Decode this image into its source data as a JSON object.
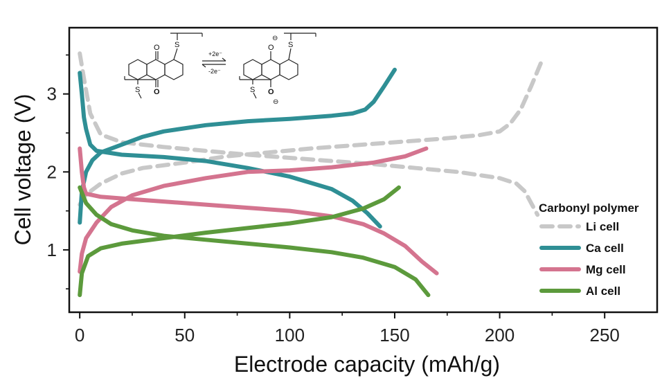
{
  "chart_data": {
    "type": "line",
    "xlabel": "Electrode capacity (mAh/g)",
    "ylabel": "Cell voltage (V)",
    "xlim": [
      -5,
      275
    ],
    "ylim": [
      0.2,
      3.85
    ],
    "xticks": [
      0,
      50,
      100,
      150,
      200,
      250
    ],
    "yticks": [
      1,
      2,
      3
    ],
    "xtick_labels": [
      "0",
      "50",
      "100",
      "150",
      "200",
      "250"
    ],
    "ytick_labels": [
      "1",
      "2",
      "3"
    ],
    "grid": false,
    "legend": {
      "title": "Carbonyl polymer",
      "placement": "bottom-right",
      "entries": [
        "Li cell",
        "Ca cell",
        "Mg cell",
        "Al cell"
      ]
    },
    "series": [
      {
        "name": "Li cell",
        "color": "#c8c8c8",
        "dashed": true,
        "segments": [
          [
            [
              0,
              3.52
            ],
            [
              2,
              3.2
            ],
            [
              5,
              2.75
            ],
            [
              10,
              2.48
            ],
            [
              20,
              2.38
            ],
            [
              40,
              2.32
            ],
            [
              60,
              2.27
            ],
            [
              80,
              2.22
            ],
            [
              100,
              2.18
            ],
            [
              120,
              2.14
            ],
            [
              140,
              2.1
            ],
            [
              160,
              2.05
            ],
            [
              180,
              2.0
            ],
            [
              200,
              1.92
            ],
            [
              208,
              1.85
            ],
            [
              212,
              1.75
            ],
            [
              215,
              1.6
            ],
            [
              218,
              1.45
            ]
          ],
          [
            [
              0,
              1.58
            ],
            [
              2,
              1.68
            ],
            [
              5,
              1.75
            ],
            [
              10,
              1.85
            ],
            [
              20,
              1.98
            ],
            [
              30,
              2.05
            ],
            [
              50,
              2.12
            ],
            [
              70,
              2.2
            ],
            [
              90,
              2.25
            ],
            [
              110,
              2.3
            ],
            [
              130,
              2.34
            ],
            [
              150,
              2.38
            ],
            [
              170,
              2.42
            ],
            [
              190,
              2.47
            ],
            [
              200,
              2.52
            ],
            [
              205,
              2.62
            ],
            [
              210,
              2.8
            ],
            [
              215,
              3.1
            ],
            [
              220,
              3.42
            ]
          ]
        ]
      },
      {
        "name": "Ca cell",
        "color": "#2f8f95",
        "dashed": false,
        "segments": [
          [
            [
              0,
              3.27
            ],
            [
              1,
              3.0
            ],
            [
              2,
              2.7
            ],
            [
              3,
              2.55
            ],
            [
              5,
              2.35
            ],
            [
              8,
              2.27
            ],
            [
              20,
              2.22
            ],
            [
              40,
              2.19
            ],
            [
              60,
              2.14
            ],
            [
              80,
              2.05
            ],
            [
              100,
              1.94
            ],
            [
              120,
              1.78
            ],
            [
              130,
              1.63
            ],
            [
              137,
              1.47
            ],
            [
              143,
              1.3
            ]
          ],
          [
            [
              0,
              1.35
            ],
            [
              1,
              1.75
            ],
            [
              3,
              2.0
            ],
            [
              6,
              2.15
            ],
            [
              10,
              2.25
            ],
            [
              20,
              2.35
            ],
            [
              30,
              2.45
            ],
            [
              40,
              2.52
            ],
            [
              60,
              2.6
            ],
            [
              80,
              2.65
            ],
            [
              100,
              2.68
            ],
            [
              120,
              2.72
            ],
            [
              130,
              2.75
            ],
            [
              136,
              2.8
            ],
            [
              140,
              2.9
            ],
            [
              145,
              3.1
            ],
            [
              150,
              3.31
            ]
          ]
        ]
      },
      {
        "name": "Mg cell",
        "color": "#d4748f",
        "dashed": false,
        "segments": [
          [
            [
              0,
              2.3
            ],
            [
              1,
              2.0
            ],
            [
              2,
              1.8
            ],
            [
              3,
              1.72
            ],
            [
              10,
              1.68
            ],
            [
              20,
              1.66
            ],
            [
              40,
              1.62
            ],
            [
              60,
              1.58
            ],
            [
              80,
              1.54
            ],
            [
              100,
              1.5
            ],
            [
              120,
              1.43
            ],
            [
              135,
              1.33
            ],
            [
              145,
              1.21
            ],
            [
              155,
              1.05
            ],
            [
              163,
              0.85
            ],
            [
              170,
              0.7
            ]
          ],
          [
            [
              0,
              0.72
            ],
            [
              1,
              0.95
            ],
            [
              3,
              1.15
            ],
            [
              8,
              1.35
            ],
            [
              15,
              1.55
            ],
            [
              25,
              1.7
            ],
            [
              40,
              1.82
            ],
            [
              60,
              1.92
            ],
            [
              80,
              2.0
            ],
            [
              100,
              2.02
            ],
            [
              120,
              2.06
            ],
            [
              140,
              2.12
            ],
            [
              155,
              2.2
            ],
            [
              165,
              2.3
            ]
          ]
        ]
      },
      {
        "name": "Al cell",
        "color": "#5c9a3c",
        "dashed": false,
        "segments": [
          [
            [
              0,
              1.8
            ],
            [
              3,
              1.6
            ],
            [
              8,
              1.45
            ],
            [
              15,
              1.33
            ],
            [
              25,
              1.25
            ],
            [
              40,
              1.18
            ],
            [
              60,
              1.13
            ],
            [
              80,
              1.08
            ],
            [
              100,
              1.03
            ],
            [
              120,
              0.97
            ],
            [
              135,
              0.9
            ],
            [
              150,
              0.78
            ],
            [
              160,
              0.62
            ],
            [
              166,
              0.42
            ]
          ],
          [
            [
              0,
              0.42
            ],
            [
              1,
              0.7
            ],
            [
              4,
              0.92
            ],
            [
              10,
              1.02
            ],
            [
              20,
              1.08
            ],
            [
              40,
              1.15
            ],
            [
              60,
              1.22
            ],
            [
              80,
              1.28
            ],
            [
              100,
              1.34
            ],
            [
              120,
              1.42
            ],
            [
              135,
              1.53
            ],
            [
              145,
              1.65
            ],
            [
              152,
              1.8
            ]
          ]
        ]
      }
    ],
    "annotation": {
      "reaction_top": "+2e⁻",
      "reaction_bottom": "-2e⁻",
      "atom_S": "S",
      "atom_O": "O",
      "charge": "⊖"
    }
  }
}
